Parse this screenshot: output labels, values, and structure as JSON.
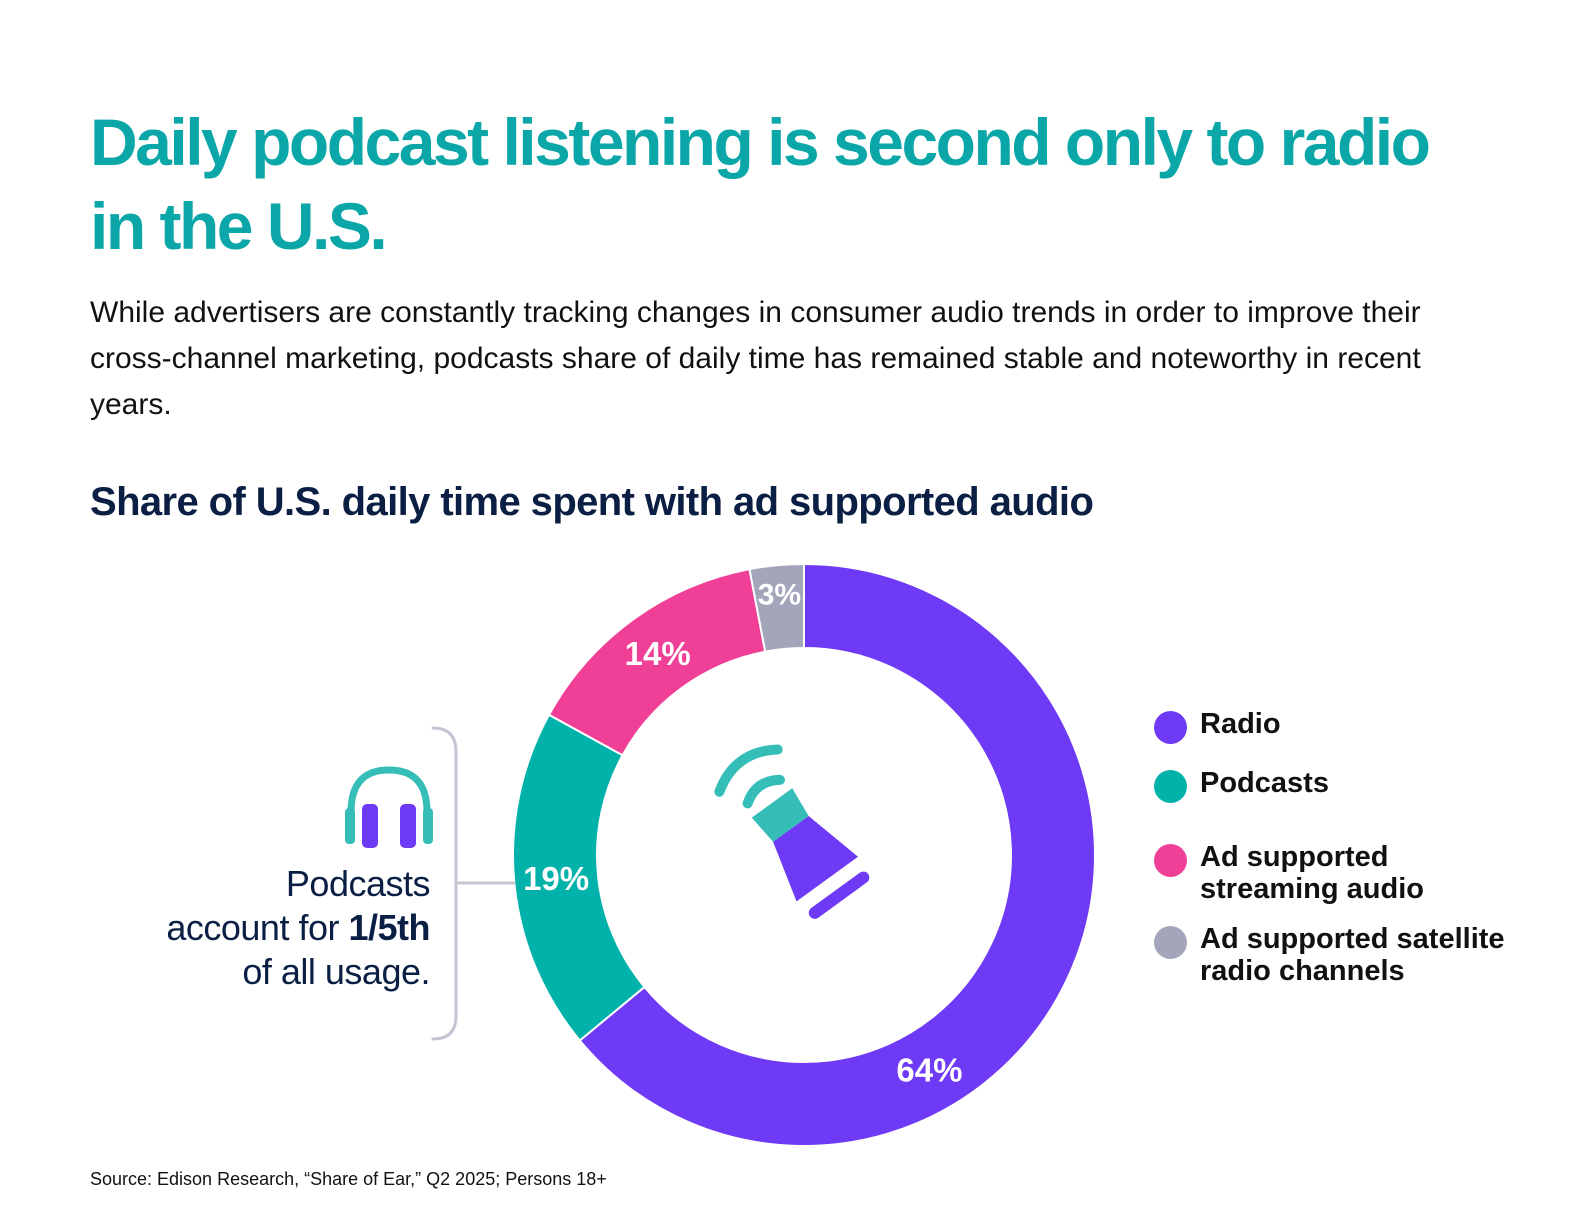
{
  "headline": "Daily podcast listening is second only to radio in the U.S.",
  "intro": "While advertisers are constantly tracking changes in consumer audio trends in order to improve their cross-channel marketing, podcasts share of daily time has remained stable and noteworthy in recent years.",
  "callout": {
    "line1": "Podcasts",
    "line2_pre": "account for ",
    "line2_bold": "1/5th",
    "line3": "of all usage.",
    "icon": "headphones-icon"
  },
  "center_icon": "megaphone-icon",
  "source": "Source: Edison Research, “Share of Ear,” Q2 2025; Persons 18+",
  "chart_data": {
    "type": "pie",
    "donut": true,
    "title": "Share of U.S. daily time spent with ad supported audio",
    "unit": "%",
    "legend_position": "right",
    "slices": [
      {
        "name": "Radio",
        "value": 64,
        "label": "64%",
        "color": "#6e3af5"
      },
      {
        "name": "Podcasts",
        "value": 19,
        "label": "19%",
        "color": "#00b2a9"
      },
      {
        "name": "Ad supported streaming audio",
        "value": 14,
        "label": "14%",
        "color": "#ef3f96"
      },
      {
        "name": "Ad supported satellite radio channels",
        "value": 3,
        "label": "3%",
        "color": "#a3a6ba"
      }
    ],
    "legend": [
      {
        "line1": "Radio",
        "line2": "",
        "color": "#6e3af5"
      },
      {
        "line1": "Podcasts",
        "line2": "",
        "color": "#00b2a9"
      },
      {
        "line1": "Ad supported",
        "line2": "streaming audio",
        "color": "#ef3f96"
      },
      {
        "line1": "Ad supported satellite",
        "line2": "radio channels",
        "color": "#a3a6ba"
      }
    ]
  }
}
